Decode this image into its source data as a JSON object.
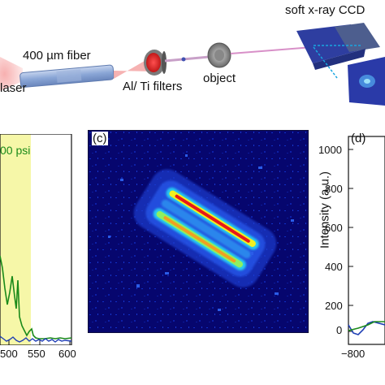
{
  "setup": {
    "laser_label": "laser",
    "fiber_label": "400 µm fiber",
    "filters_label": "Al/ Ti filters",
    "object_label": "object",
    "ccd_label": "soft x-ray CCD"
  },
  "panel_b": {
    "legend_fragment": "00 psi",
    "x_ticks": [
      "500",
      "550",
      "600"
    ],
    "highlight_color": "#f6f7a8",
    "series": [
      {
        "color": "#1a8a1a"
      },
      {
        "color": "#1f3fb5"
      }
    ]
  },
  "panel_c": {
    "label": "(c)"
  },
  "panel_d": {
    "label": "(d)",
    "ylabel": "Intensity (a.u.)",
    "y_ticks": [
      "1000",
      "800",
      "600",
      "400",
      "200",
      "0"
    ],
    "x_tick_left": "−800"
  },
  "colors": {
    "fiber": "#8aa6d6",
    "beam": "#f2a0a0",
    "ccd_body": "#2e3ea0",
    "ccd_face": "#4d5e8e",
    "ray": "#18a6e0"
  }
}
